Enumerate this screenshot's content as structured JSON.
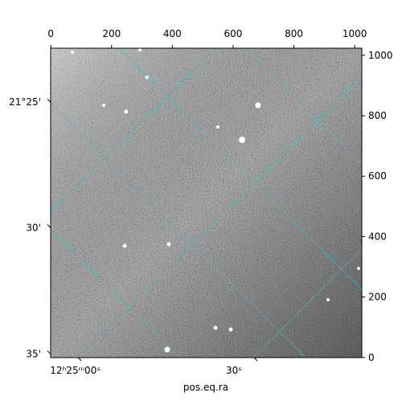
{
  "chart_data": {
    "type": "image",
    "xlabel": "pos.eq.ra",
    "xlim": [
      -0.5,
      1023.5
    ],
    "xticks": [
      0,
      200,
      400,
      600,
      800,
      1000
    ],
    "ylim": [
      -0.5,
      1023.5
    ],
    "yticks": [
      0,
      200,
      400,
      600,
      800,
      1000
    ],
    "ra_ticks": [
      {
        "value": 90,
        "label": "12ʰ25ᵐ00ˢ"
      },
      {
        "value": 669,
        "label": "30ˢ"
      }
    ],
    "dec_ticks": [
      {
        "value": 845,
        "label": "21°25'"
      },
      {
        "value": 429,
        "label": "30'"
      },
      {
        "value": 11,
        "label": "35'"
      }
    ],
    "grid": true,
    "grid_color": "#2ec4c4"
  }
}
